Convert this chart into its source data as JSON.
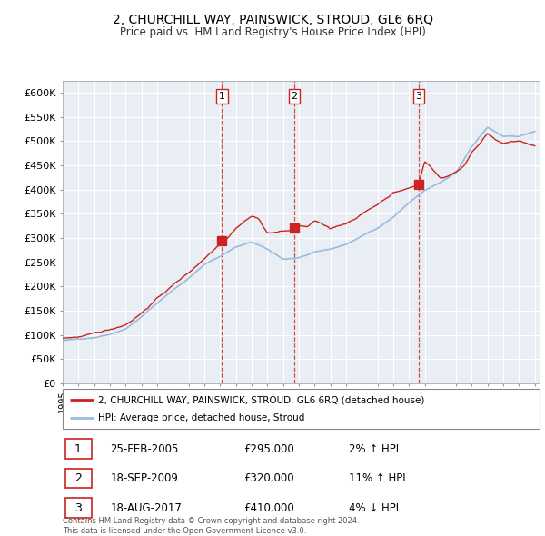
{
  "title": "2, CHURCHILL WAY, PAINSWICK, STROUD, GL6 6RQ",
  "subtitle": "Price paid vs. HM Land Registry's House Price Index (HPI)",
  "legend_line1": "2, CHURCHILL WAY, PAINSWICK, STROUD, GL6 6RQ (detached house)",
  "legend_line2": "HPI: Average price, detached house, Stroud",
  "transactions": [
    {
      "num": 1,
      "date": "25-FEB-2005",
      "price": 295000,
      "pct": "2%",
      "dir": "↑"
    },
    {
      "num": 2,
      "date": "18-SEP-2009",
      "price": 320000,
      "pct": "11%",
      "dir": "↑"
    },
    {
      "num": 3,
      "date": "18-AUG-2017",
      "price": 410000,
      "pct": "4%",
      "dir": "↓"
    }
  ],
  "copyright": "Contains HM Land Registry data © Crown copyright and database right 2024.\nThis data is licensed under the Open Government Licence v3.0.",
  "line_color_red": "#cc2222",
  "line_color_blue": "#99bbdd",
  "background_color": "#ffffff",
  "chart_bg": "#e8eef4",
  "grid_color": "#ffffff",
  "transaction_line_color": "#cc2222",
  "ylim": [
    0,
    625000
  ],
  "yticks": [
    0,
    50000,
    100000,
    150000,
    200000,
    250000,
    300000,
    350000,
    400000,
    450000,
    500000,
    550000,
    600000
  ],
  "x_start_year": 1995,
  "x_end_year": 2025,
  "transaction_years": [
    2005.125,
    2009.708,
    2017.625
  ],
  "transaction_prices": [
    295000,
    320000,
    410000
  ],
  "hpi_control_x": [
    1995,
    1996,
    1997,
    1998,
    1999,
    2000,
    2001,
    2002,
    2003,
    2004,
    2005,
    2006,
    2007,
    2008,
    2009,
    2010,
    2011,
    2012,
    2013,
    2014,
    2015,
    2016,
    2017,
    2018,
    2019,
    2020,
    2021,
    2022,
    2023,
    2024,
    2025
  ],
  "hpi_control_y": [
    88000,
    91000,
    95000,
    103000,
    115000,
    140000,
    168000,
    195000,
    220000,
    248000,
    265000,
    285000,
    295000,
    280000,
    258000,
    262000,
    272000,
    278000,
    288000,
    305000,
    322000,
    345000,
    375000,
    400000,
    415000,
    435000,
    490000,
    530000,
    510000,
    510000,
    520000
  ],
  "prop_control_x": [
    1995,
    1996,
    1997,
    1998,
    1999,
    2000,
    2001,
    2002,
    2003,
    2004,
    2005.1,
    2005.5,
    2006,
    2006.5,
    2007,
    2007.5,
    2008,
    2009.7,
    2010,
    2010.5,
    2011,
    2011.5,
    2012,
    2013,
    2014,
    2015,
    2016,
    2017.6,
    2018.0,
    2018.3,
    2018.6,
    2019.0,
    2019.5,
    2020,
    2020.5,
    2021,
    2021.5,
    2022,
    2022.5,
    2023,
    2023.5,
    2024,
    2025
  ],
  "prop_control_y": [
    93000,
    96000,
    100000,
    108000,
    120000,
    145000,
    175000,
    202000,
    228000,
    258000,
    295000,
    305000,
    325000,
    338000,
    350000,
    342000,
    315000,
    320000,
    330000,
    325000,
    338000,
    330000,
    318000,
    330000,
    350000,
    370000,
    395000,
    410000,
    460000,
    452000,
    440000,
    425000,
    430000,
    440000,
    450000,
    480000,
    500000,
    520000,
    505000,
    495000,
    500000,
    500000,
    490000
  ]
}
